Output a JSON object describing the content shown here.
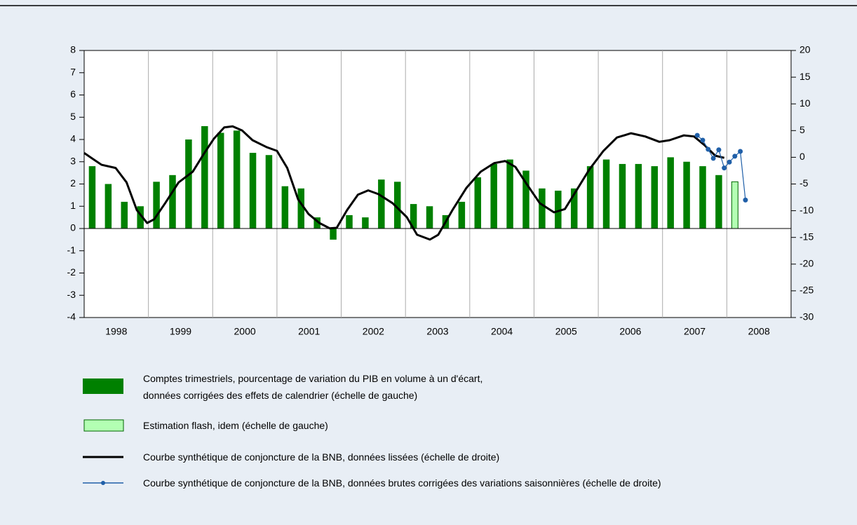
{
  "chart_data": {
    "type": "combo",
    "xlim": [
      1998,
      2009
    ],
    "xticks": [
      1998,
      1999,
      2000,
      2001,
      2002,
      2003,
      2004,
      2005,
      2006,
      2007,
      2008
    ],
    "ylim": [
      -4,
      8
    ],
    "yticks": [
      -4,
      -3,
      -2,
      -1,
      0,
      1,
      2,
      3,
      4,
      5,
      6,
      7,
      8
    ],
    "y2lim": [
      -30,
      20
    ],
    "y2ticks": [
      -30,
      -25,
      -20,
      -15,
      -10,
      -5,
      0,
      5,
      10,
      15,
      20
    ],
    "grid": true,
    "series": [
      {
        "name": "Comptes trimestriels, pourcentage de variation du PIB en volume à un d'écart,\ndonnées corrigées des effets de calendrier (échelle de gauche)",
        "type": "bar",
        "color": "#008000",
        "axis": "y",
        "x": [
          1998.125,
          1998.375,
          1998.625,
          1998.875,
          1999.125,
          1999.375,
          1999.625,
          1999.875,
          2000.125,
          2000.375,
          2000.625,
          2000.875,
          2001.125,
          2001.375,
          2001.625,
          2001.875,
          2002.125,
          2002.375,
          2002.625,
          2002.875,
          2003.125,
          2003.375,
          2003.625,
          2003.875,
          2004.125,
          2004.375,
          2004.625,
          2004.875,
          2005.125,
          2005.375,
          2005.625,
          2005.875,
          2006.125,
          2006.375,
          2006.625,
          2006.875,
          2007.125,
          2007.375,
          2007.625,
          2007.875
        ],
        "values": [
          2.8,
          2.0,
          1.2,
          1.0,
          2.1,
          2.4,
          4.0,
          4.6,
          4.3,
          4.4,
          3.4,
          3.3,
          1.9,
          1.8,
          0.5,
          -0.5,
          0.6,
          0.5,
          2.2,
          2.1,
          1.1,
          1.0,
          0.6,
          1.2,
          2.3,
          2.9,
          3.1,
          2.6,
          1.8,
          1.7,
          1.8,
          2.8,
          3.1,
          2.9,
          2.9,
          2.8,
          3.2,
          3.0,
          2.8,
          2.4
        ]
      },
      {
        "name": "Estimation flash, idem (échelle de gauche)",
        "type": "bar",
        "color": "#b3ffb3",
        "edgecolor": "#006400",
        "axis": "y",
        "x": [
          2008.125
        ],
        "values": [
          2.1
        ]
      },
      {
        "name": "Courbe synthétique de conjoncture de la BNB, données lissées (échelle de droite)",
        "type": "line",
        "color": "#000000",
        "axis": "y2",
        "x": [
          1998.0,
          1998.27,
          1998.49,
          1998.66,
          1998.82,
          1998.98,
          1999.09,
          1999.26,
          1999.47,
          1999.69,
          1999.86,
          2000.02,
          2000.18,
          2000.31,
          2000.46,
          2000.62,
          2000.84,
          2001.0,
          2001.16,
          2001.33,
          2001.49,
          2001.66,
          2001.82,
          2001.93,
          2002.09,
          2002.26,
          2002.42,
          2002.58,
          2002.8,
          2003.02,
          2003.18,
          2003.38,
          2003.51,
          2003.73,
          2003.95,
          2004.17,
          2004.38,
          2004.55,
          2004.71,
          2004.88,
          2005.09,
          2005.31,
          2005.48,
          2005.64,
          2005.86,
          2006.08,
          2006.29,
          2006.51,
          2006.73,
          2006.95,
          2007.11,
          2007.33,
          2007.49,
          2007.66,
          2007.82,
          2007.96
        ],
        "values": [
          0.8,
          -1.4,
          -2.0,
          -4.7,
          -9.9,
          -12.3,
          -11.6,
          -8.6,
          -4.7,
          -2.7,
          0.6,
          3.5,
          5.6,
          5.8,
          5.0,
          3.2,
          1.9,
          1.2,
          -2.0,
          -7.9,
          -10.6,
          -12.3,
          -13.3,
          -13.2,
          -9.9,
          -7.0,
          -6.2,
          -6.9,
          -8.6,
          -11.2,
          -14.5,
          -15.4,
          -14.5,
          -9.9,
          -5.7,
          -2.7,
          -1.1,
          -0.7,
          -1.8,
          -4.9,
          -8.6,
          -10.3,
          -9.7,
          -6.6,
          -2.3,
          1.2,
          3.7,
          4.5,
          3.9,
          2.9,
          3.2,
          4.1,
          3.9,
          2.2,
          0.3,
          -0.1
        ]
      },
      {
        "name": "Courbe synthétique de conjoncture de la BNB, données brutes corrigées des variations saisonnières (échelle de droite)",
        "type": "line",
        "color": "#1f5fa8",
        "axis": "y2",
        "marker": true,
        "x": [
          2007.54,
          2007.625,
          2007.71,
          2007.79,
          2007.875,
          2007.96,
          2008.04,
          2008.125,
          2008.21,
          2008.29
        ],
        "values": [
          4.1,
          3.2,
          1.5,
          -0.2,
          1.4,
          -2.0,
          -0.9,
          0.2,
          1.1,
          -8.0
        ]
      }
    ]
  }
}
